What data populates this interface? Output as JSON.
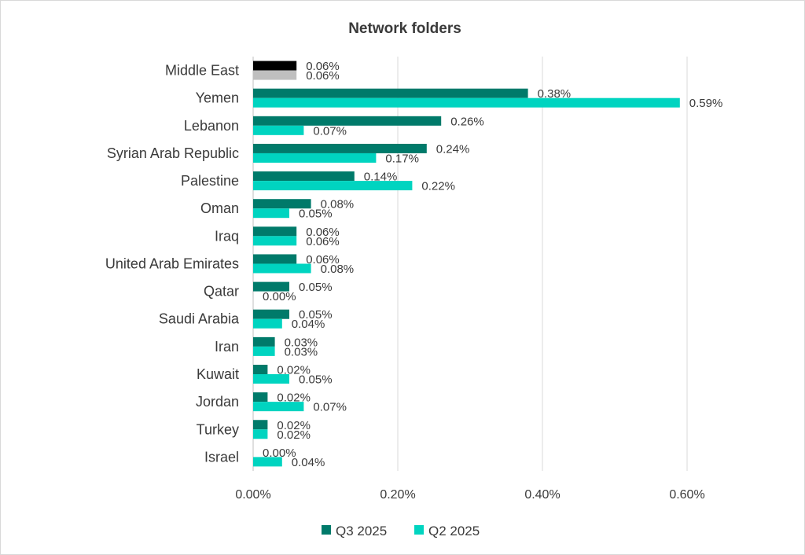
{
  "chart_data": {
    "type": "bar",
    "orientation": "horizontal",
    "title": "Network folders",
    "categories": [
      "Middle East",
      "Yemen",
      "Lebanon",
      "Syrian Arab Republic",
      "Palestine",
      "Oman",
      "Iraq",
      "United Arab Emirates",
      "Qatar",
      "Saudi Arabia",
      "Iran",
      "Kuwait",
      "Jordan",
      "Turkey",
      "Israel"
    ],
    "series": [
      {
        "name": "Q3 2025",
        "color": "#007a6a",
        "highlight_color": "#000000",
        "values": [
          0.06,
          0.38,
          0.26,
          0.24,
          0.14,
          0.08,
          0.06,
          0.06,
          0.05,
          0.05,
          0.03,
          0.02,
          0.02,
          0.02,
          0.0
        ],
        "labels": [
          "0.06%",
          "0.38%",
          "0.26%",
          "0.24%",
          "0.14%",
          "0.08%",
          "0.06%",
          "0.06%",
          "0.05%",
          "0.05%",
          "0.03%",
          "0.02%",
          "0.02%",
          "0.02%",
          "0.00%"
        ]
      },
      {
        "name": "Q2 2025",
        "color": "#00d4c0",
        "highlight_color": "#bfbfbf",
        "values": [
          0.06,
          0.59,
          0.07,
          0.17,
          0.22,
          0.05,
          0.06,
          0.08,
          0.0,
          0.04,
          0.03,
          0.05,
          0.07,
          0.02,
          0.04
        ],
        "labels": [
          "0.06%",
          "0.59%",
          "0.07%",
          "0.17%",
          "0.22%",
          "0.05%",
          "0.06%",
          "0.08%",
          "0.00%",
          "0.04%",
          "0.03%",
          "0.05%",
          "0.07%",
          "0.02%",
          "0.04%"
        ]
      }
    ],
    "xlim": [
      0,
      0.6
    ],
    "xticks": [
      0,
      0.2,
      0.4,
      0.6
    ],
    "xtick_labels": [
      "0.00%",
      "0.20%",
      "0.40%",
      "0.60%"
    ],
    "grid": true,
    "legend_position": "bottom"
  }
}
